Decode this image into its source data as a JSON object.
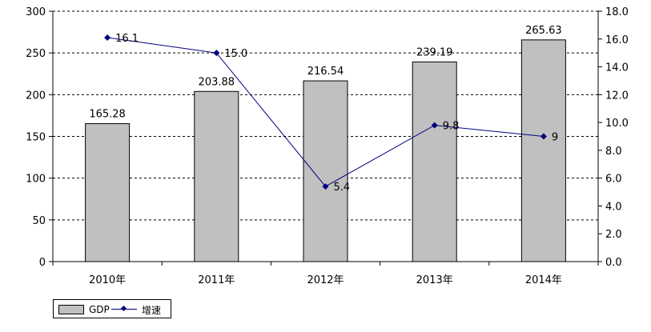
{
  "chart_data": {
    "type": "bar",
    "categories": [
      "2010年",
      "2011年",
      "2012年",
      "2013年",
      "2014年"
    ],
    "series": [
      {
        "name": "GDP",
        "type": "bar",
        "axis": "left",
        "values": [
          165.28,
          203.88,
          216.54,
          239.19,
          265.63
        ],
        "labels": [
          "165.28",
          "203.88",
          "216.54",
          "239.19",
          "265.63"
        ],
        "color": "#c0c0c0"
      },
      {
        "name": "增速",
        "type": "line",
        "axis": "right",
        "values": [
          16.1,
          15.0,
          5.4,
          9.8,
          9
        ],
        "labels": [
          "16.1",
          "15.0",
          "5.4",
          "9.8",
          "9"
        ],
        "color": "#000080"
      }
    ],
    "title": "",
    "xlabel": "",
    "ylabel": "",
    "y_left_ticks": [
      "0",
      "50",
      "100",
      "150",
      "200",
      "250",
      "300"
    ],
    "y_right_ticks": [
      "0.0",
      "2.0",
      "4.0",
      "6.0",
      "8.0",
      "10.0",
      "12.0",
      "14.0",
      "16.0",
      "18.0"
    ],
    "ylim_left": [
      0,
      300
    ],
    "ylim_right": [
      0,
      18
    ],
    "grid": true,
    "legend_position": "bottom-left"
  }
}
